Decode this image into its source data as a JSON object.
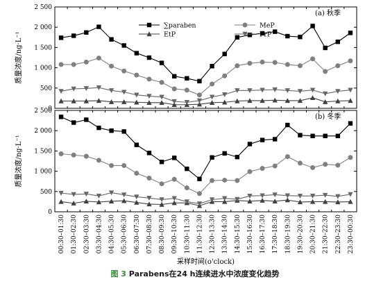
{
  "caption": {
    "figure_number": "图 3",
    "text": "Parabens在24 h连续进水中浓度变化趋势"
  },
  "colors": {
    "sum_paraben": "#000000",
    "mep": "#808080",
    "etp": "#404040",
    "prp": "#666666",
    "axis": "#000000"
  },
  "chart_data": [
    {
      "type": "line",
      "panel_label": "(a) 秋季",
      "ylabel": "质量浓度/ng·L⁻¹",
      "xlabel": "",
      "ylim": [
        0,
        2500
      ],
      "yticks": [
        "0",
        "500",
        "1 000",
        "1 500",
        "2 000",
        "2 500"
      ],
      "ytick_values": [
        0,
        500,
        1000,
        1500,
        2000,
        2500
      ],
      "legend": [
        {
          "name": "∑paraben",
          "marker": "square"
        },
        {
          "name": "MeP",
          "marker": "circle"
        },
        {
          "name": "EtP",
          "marker": "triangle-up"
        },
        {
          "name": "PrP",
          "marker": "triangle-down"
        }
      ],
      "series": [
        {
          "name": "∑paraben",
          "marker": "square",
          "color": "#000000",
          "values": [
            1740,
            1790,
            1870,
            2010,
            1700,
            1550,
            1360,
            1250,
            1120,
            790,
            740,
            670,
            1040,
            1340,
            1750,
            1810,
            1850,
            1890,
            1780,
            1760,
            2030,
            1490,
            1640,
            1860
          ]
        },
        {
          "name": "MeP",
          "marker": "circle",
          "color": "#808080",
          "values": [
            1080,
            1080,
            1140,
            1240,
            1040,
            920,
            820,
            720,
            640,
            480,
            450,
            330,
            600,
            800,
            1050,
            1110,
            1140,
            1130,
            1080,
            1050,
            1220,
            910,
            1050,
            1170
          ]
        },
        {
          "name": "EtP",
          "marker": "triangle-up",
          "color": "#404040",
          "values": [
            180,
            180,
            180,
            190,
            160,
            160,
            150,
            140,
            140,
            90,
            90,
            100,
            140,
            150,
            180,
            190,
            190,
            200,
            190,
            190,
            260,
            160,
            180,
            190
          ]
        },
        {
          "name": "PrP",
          "marker": "triangle-down",
          "color": "#666666",
          "values": [
            420,
            480,
            490,
            510,
            440,
            400,
            330,
            300,
            280,
            170,
            150,
            190,
            280,
            340,
            440,
            440,
            450,
            460,
            440,
            420,
            450,
            360,
            420,
            450
          ]
        }
      ]
    },
    {
      "type": "line",
      "panel_label": "(b) 冬季",
      "ylabel": "质量浓度/ng·L⁻¹",
      "xlabel": "采样时间(o'clock)",
      "ylim": [
        0,
        2500
      ],
      "yticks": [
        "0",
        "500",
        "1 000",
        "1 500",
        "2 000",
        "2 500"
      ],
      "ytick_values": [
        0,
        500,
        1000,
        1500,
        2000,
        2500
      ],
      "categories": [
        "00:30–01:30",
        "01:30–02:30",
        "02:30–03:30",
        "03:30–04:30",
        "04:30–05:30",
        "05:30–06:30",
        "06:30–07:30",
        "07:30–08:30",
        "08:30–09:30",
        "09:30–10:30",
        "10:30–11:30",
        "11:30–12:30",
        "12:30–13:30",
        "13:30–14:30",
        "14:30–15:30",
        "15:30–16:30",
        "16:30–17:30",
        "17:30–18:30",
        "18:30–19:30",
        "19:30–20:30",
        "20:30–21:30",
        "21:30–22:30",
        "22:30–23:30",
        "23:30–00:30"
      ],
      "series": [
        {
          "name": "∑paraben",
          "marker": "square",
          "color": "#000000",
          "values": [
            2340,
            2200,
            2270,
            2070,
            2000,
            1980,
            1650,
            1450,
            1230,
            1330,
            1060,
            810,
            1340,
            1440,
            1350,
            1670,
            1770,
            1790,
            2140,
            1890,
            1870,
            1870,
            1870,
            2180
          ]
        },
        {
          "name": "MeP",
          "marker": "circle",
          "color": "#808080",
          "values": [
            1430,
            1400,
            1370,
            1270,
            1140,
            1140,
            950,
            830,
            690,
            800,
            590,
            450,
            770,
            780,
            770,
            990,
            1070,
            1130,
            1360,
            1200,
            1090,
            1170,
            1150,
            1340
          ]
        },
        {
          "name": "EtP",
          "marker": "triangle-up",
          "color": "#404040",
          "values": [
            250,
            210,
            260,
            240,
            260,
            270,
            230,
            190,
            180,
            220,
            220,
            150,
            250,
            250,
            280,
            260,
            280,
            260,
            290,
            240,
            250,
            250,
            240,
            250
          ]
        },
        {
          "name": "PrP",
          "marker": "triangle-down",
          "color": "#666666",
          "values": [
            460,
            430,
            440,
            390,
            470,
            420,
            370,
            340,
            300,
            330,
            250,
            200,
            300,
            330,
            310,
            390,
            400,
            420,
            400,
            390,
            390,
            410,
            380,
            430
          ]
        }
      ]
    }
  ]
}
